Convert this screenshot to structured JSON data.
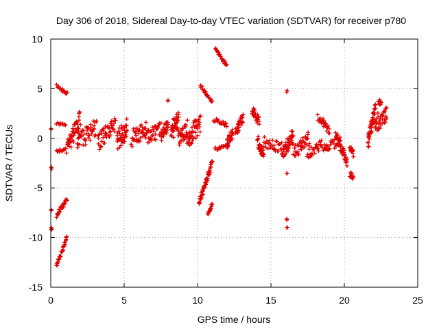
{
  "chart_data": {
    "type": "scatter",
    "title": "Day 306 of 2018, Sidereal Day-to-day VTEC variation (SDTVAR) for receiver p780",
    "xlabel": "GPS time / hours",
    "ylabel": "SDTVAR / TECUs",
    "xlim": [
      0,
      25
    ],
    "ylim": [
      -15,
      10
    ],
    "grid": true,
    "marker": "+",
    "color": "#e00000",
    "x_ticks": [
      0,
      5,
      10,
      15,
      20,
      25
    ],
    "y_ticks": [
      10,
      5,
      0,
      -5,
      -10,
      -15
    ],
    "segments": [
      {
        "x0": 0.05,
        "y0": 1.0,
        "x1": 0.05,
        "y1": 1.0,
        "spread": 0.1
      },
      {
        "x0": 0.05,
        "y0": -3.0,
        "x1": 0.05,
        "y1": -3.0,
        "spread": 0.1
      },
      {
        "x0": 0.05,
        "y0": -7.2,
        "x1": 0.05,
        "y1": -7.2,
        "spread": 0.1
      },
      {
        "x0": 0.05,
        "y0": -9.0,
        "x1": 0.05,
        "y1": -9.1,
        "spread": 0.15
      },
      {
        "x0": 0.4,
        "y0": -12.8,
        "x1": 1.1,
        "y1": -10.0,
        "spread": 0.2
      },
      {
        "x0": 0.4,
        "y0": -7.8,
        "x1": 1.1,
        "y1": -6.1,
        "spread": 0.2
      },
      {
        "x0": 0.4,
        "y0": -1.3,
        "x1": 1.0,
        "y1": -1.1,
        "spread": 0.15
      },
      {
        "x0": 0.4,
        "y0": 1.5,
        "x1": 1.0,
        "y1": 1.4,
        "spread": 0.1
      },
      {
        "x0": 0.4,
        "y0": 5.3,
        "x1": 1.1,
        "y1": 4.5,
        "spread": 0.15
      },
      {
        "x0": 1.1,
        "y0": -1.0,
        "x1": 2.0,
        "y1": 2.0,
        "spread": 0.8
      },
      {
        "x0": 1.8,
        "y0": -0.5,
        "x1": 3.1,
        "y1": 1.2,
        "spread": 0.9
      },
      {
        "x0": 3.2,
        "y0": -0.5,
        "x1": 4.4,
        "y1": 1.5,
        "spread": 0.9
      },
      {
        "x0": 4.5,
        "y0": -0.3,
        "x1": 5.2,
        "y1": 1.0,
        "spread": 1.0
      },
      {
        "x0": 5.5,
        "y0": 0.0,
        "x1": 6.5,
        "y1": 1.0,
        "spread": 0.9
      },
      {
        "x0": 6.5,
        "y0": 0.2,
        "x1": 7.5,
        "y1": 0.8,
        "spread": 0.8
      },
      {
        "x0": 7.5,
        "y0": 0.3,
        "x1": 8.0,
        "y1": 1.2,
        "spread": 0.7
      },
      {
        "x0": 8.0,
        "y0": 3.8,
        "x1": 8.0,
        "y1": 3.8,
        "spread": 0.05
      },
      {
        "x0": 8.2,
        "y0": 0.5,
        "x1": 8.7,
        "y1": 2.0,
        "spread": 0.9
      },
      {
        "x0": 8.7,
        "y0": 0.0,
        "x1": 9.3,
        "y1": 1.0,
        "spread": 0.9
      },
      {
        "x0": 9.3,
        "y0": 0.0,
        "x1": 10.2,
        "y1": 1.5,
        "spread": 1.0
      },
      {
        "x0": 10.1,
        "y0": -6.6,
        "x1": 11.0,
        "y1": -2.3,
        "spread": 0.4
      },
      {
        "x0": 10.7,
        "y0": -7.6,
        "x1": 11.0,
        "y1": -6.6,
        "spread": 0.15
      },
      {
        "x0": 10.2,
        "y0": 5.3,
        "x1": 11.0,
        "y1": 3.6,
        "spread": 0.15
      },
      {
        "x0": 11.2,
        "y0": 9.1,
        "x1": 12.0,
        "y1": 7.3,
        "spread": 0.15
      },
      {
        "x0": 11.1,
        "y0": 1.9,
        "x1": 12.0,
        "y1": 1.3,
        "spread": 0.2
      },
      {
        "x0": 11.2,
        "y0": -1.1,
        "x1": 12.0,
        "y1": -0.6,
        "spread": 0.15
      },
      {
        "x0": 12.0,
        "y0": -0.5,
        "x1": 12.4,
        "y1": 0.5,
        "spread": 0.5
      },
      {
        "x0": 12.6,
        "y0": 0.5,
        "x1": 13.1,
        "y1": 2.1,
        "spread": 0.5
      },
      {
        "x0": 13.7,
        "y0": 2.8,
        "x1": 14.2,
        "y1": 1.7,
        "spread": 0.5
      },
      {
        "x0": 14.1,
        "y0": -0.2,
        "x1": 14.5,
        "y1": -1.8,
        "spread": 0.6
      },
      {
        "x0": 14.5,
        "y0": -0.3,
        "x1": 15.8,
        "y1": -1.0,
        "spread": 0.6
      },
      {
        "x0": 15.8,
        "y0": -1.5,
        "x1": 16.5,
        "y1": 0.5,
        "spread": 0.8
      },
      {
        "x0": 16.1,
        "y0": 4.7,
        "x1": 16.1,
        "y1": 4.7,
        "spread": 0.1
      },
      {
        "x0": 16.1,
        "y0": -3.5,
        "x1": 16.1,
        "y1": -3.5,
        "spread": 0.05
      },
      {
        "x0": 16.1,
        "y0": -8.2,
        "x1": 16.1,
        "y1": -8.2,
        "spread": 0.1
      },
      {
        "x0": 16.1,
        "y0": -9.0,
        "x1": 16.1,
        "y1": -9.0,
        "spread": 0.05
      },
      {
        "x0": 16.5,
        "y0": -1.3,
        "x1": 17.6,
        "y1": 0.0,
        "spread": 0.8
      },
      {
        "x0": 17.5,
        "y0": -1.7,
        "x1": 18.5,
        "y1": -0.5,
        "spread": 0.5
      },
      {
        "x0": 18.2,
        "y0": 2.2,
        "x1": 19.0,
        "y1": 0.8,
        "spread": 0.4
      },
      {
        "x0": 18.6,
        "y0": -1.0,
        "x1": 19.7,
        "y1": -0.3,
        "spread": 0.5
      },
      {
        "x0": 19.4,
        "y0": 0.5,
        "x1": 20.2,
        "y1": -2.5,
        "spread": 0.5
      },
      {
        "x0": 20.4,
        "y0": -0.8,
        "x1": 20.6,
        "y1": -1.6,
        "spread": 0.3
      },
      {
        "x0": 20.4,
        "y0": -3.6,
        "x1": 20.6,
        "y1": -4.0,
        "spread": 0.3
      },
      {
        "x0": 21.6,
        "y0": -0.3,
        "x1": 22.1,
        "y1": 2.8,
        "spread": 0.8
      },
      {
        "x0": 22.1,
        "y0": 1.5,
        "x1": 22.9,
        "y1": 2.5,
        "spread": 0.9
      },
      {
        "x0": 22.3,
        "y0": 3.7,
        "x1": 22.5,
        "y1": 3.5,
        "spread": 0.3
      }
    ]
  }
}
